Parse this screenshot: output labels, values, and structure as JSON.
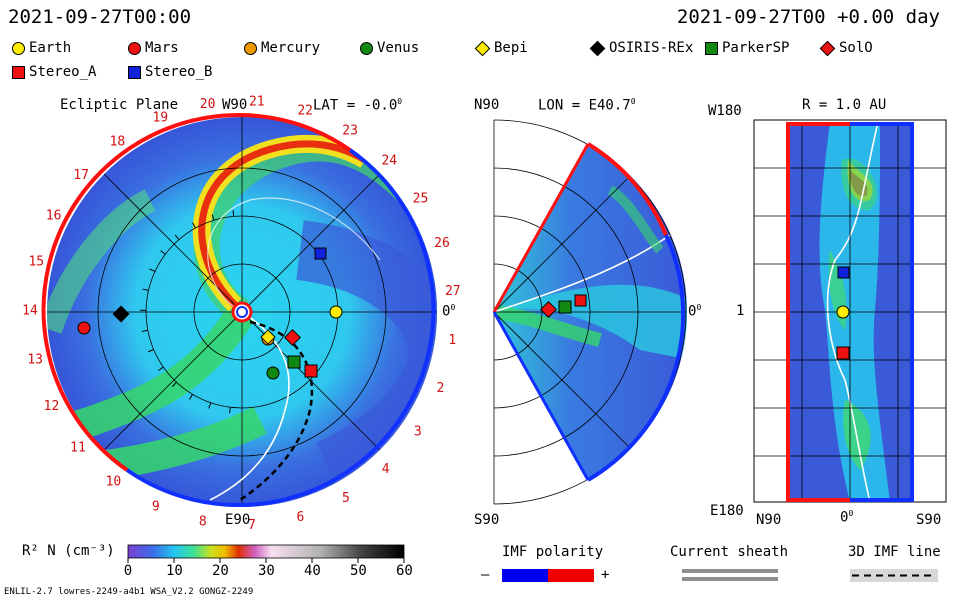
{
  "header": {
    "datetime": "2021-09-27T00:00",
    "offset": "2021-09-27T00 +0.00 day"
  },
  "legend": [
    {
      "label": "Earth",
      "color": "#ffee00",
      "shape": "circle"
    },
    {
      "label": "Mars",
      "color": "#ee1111",
      "shape": "circle"
    },
    {
      "label": "Mercury",
      "color": "#ee9900",
      "shape": "circle"
    },
    {
      "label": "Venus",
      "color": "#118811",
      "shape": "circle"
    },
    {
      "label": "Bepi",
      "color": "#ffee00",
      "shape": "diamond"
    },
    {
      "label": "OSIRIS-REx",
      "color": "#000000",
      "shape": "diamond"
    },
    {
      "label": "ParkerSP",
      "color": "#118811",
      "shape": "square"
    },
    {
      "label": "SolO",
      "color": "#ee1111",
      "shape": "diamond"
    },
    {
      "label": "Stereo_A",
      "color": "#ee1111",
      "shape": "square"
    },
    {
      "label": "Stereo_B",
      "color": "#1122dd",
      "shape": "square"
    }
  ],
  "ecliptic": {
    "title": "Ecliptic Plane",
    "lat": "LAT = -0.0",
    "top_label": "W90",
    "bottom_label": "E90",
    "right_label": "0",
    "carrington": [
      "1",
      "2",
      "3",
      "4",
      "5",
      "6",
      "7",
      "8",
      "9",
      "10",
      "11",
      "12",
      "13",
      "14",
      "15",
      "16",
      "17",
      "18",
      "19",
      "20",
      "21",
      "22",
      "23",
      "24",
      "25",
      "26",
      "27"
    ]
  },
  "meridional": {
    "lon": "LON = E40.7",
    "top_label": "N90",
    "bottom_label": "S90",
    "right_label": "0"
  },
  "lonlat": {
    "r": "R = 1.0 AU",
    "top_label": "W180",
    "mid_label": "1",
    "bottom_label": "E180",
    "x_left": "N90",
    "x_mid": "0",
    "x_right": "S90"
  },
  "colorbar": {
    "label": "R² N (cm⁻³)",
    "ticks": [
      "0",
      "10",
      "20",
      "30",
      "40",
      "50",
      "60"
    ],
    "stops": [
      "#7a3fd0",
      "#3a6ee8",
      "#22c8f0",
      "#40e090",
      "#c8e020",
      "#f0c000",
      "#e03000",
      "#d060c0",
      "#f8e0f0",
      "#b0b0b0",
      "#404040",
      "#000000"
    ]
  },
  "imf": {
    "label": "IMF polarity",
    "minus": "–",
    "plus": "+",
    "neg_color": "#0000ee",
    "pos_color": "#ee0000"
  },
  "current_sheath": {
    "label": "Current sheath"
  },
  "imf3d": {
    "label": "3D IMF line"
  },
  "footer": {
    "left": "ENLIL-2.7 lowres-2249-a4b1 WSA_V2.2 GONGZ-2249"
  }
}
